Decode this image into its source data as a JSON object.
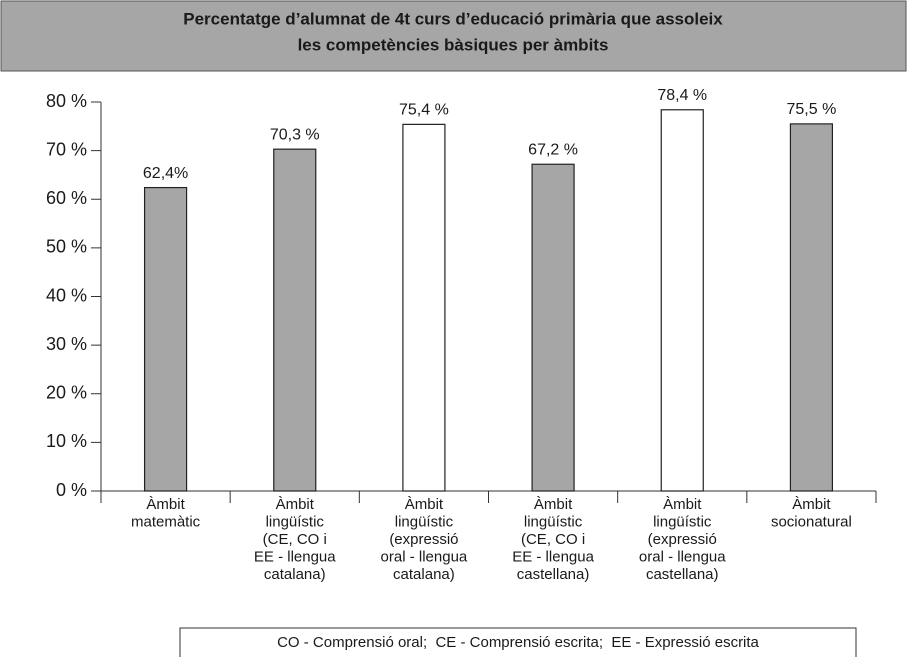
{
  "chart_data": {
    "type": "bar",
    "title": [
      "Percentatge d’alumnat de 4t curs d’educació primària que assoleix",
      "les competències bàsiques per àmbits"
    ],
    "categories": [
      [
        "Àmbit",
        "matemàtic"
      ],
      [
        "Àmbit",
        "lingüístic",
        "(CE, CO i",
        "EE - llengua",
        "catalana)"
      ],
      [
        "Àmbit",
        "lingüístic",
        "(expressió",
        "oral - llengua",
        "catalana)"
      ],
      [
        "Àmbit",
        "lingüístic",
        "(CE, CO i",
        "EE - llengua",
        "castellana)"
      ],
      [
        "Àmbit",
        "lingüístic",
        "(expressió",
        "oral - llengua",
        "castellana)"
      ],
      [
        "Àmbit",
        "socionatural"
      ]
    ],
    "values": [
      62.4,
      70.3,
      75.4,
      67.2,
      78.4,
      75.5
    ],
    "value_labels": [
      "62,4%",
      "70,3 %",
      "75,4 %",
      "67,2 %",
      "78,4 %",
      "75,5 %"
    ],
    "colors": [
      "#a6a6a6",
      "#a6a6a6",
      "#ffffff",
      "#a6a6a6",
      "#ffffff",
      "#a6a6a6"
    ],
    "ylim": [
      0,
      80
    ],
    "yticks": [
      {
        "value": 0,
        "label": "0 %"
      },
      {
        "value": 10,
        "label": "10 %"
      },
      {
        "value": 20,
        "label": "20 %"
      },
      {
        "value": 30,
        "label": "30 %"
      },
      {
        "value": 40,
        "label": "40 %"
      },
      {
        "value": 50,
        "label": "50 %"
      },
      {
        "value": 60,
        "label": "60 %"
      },
      {
        "value": 70,
        "label": "70 %"
      },
      {
        "value": 80,
        "label": "80 %"
      }
    ],
    "note": "CO - Comprensió oral;  CE - Comprensió escrita;  EE - Expressió escrita"
  }
}
